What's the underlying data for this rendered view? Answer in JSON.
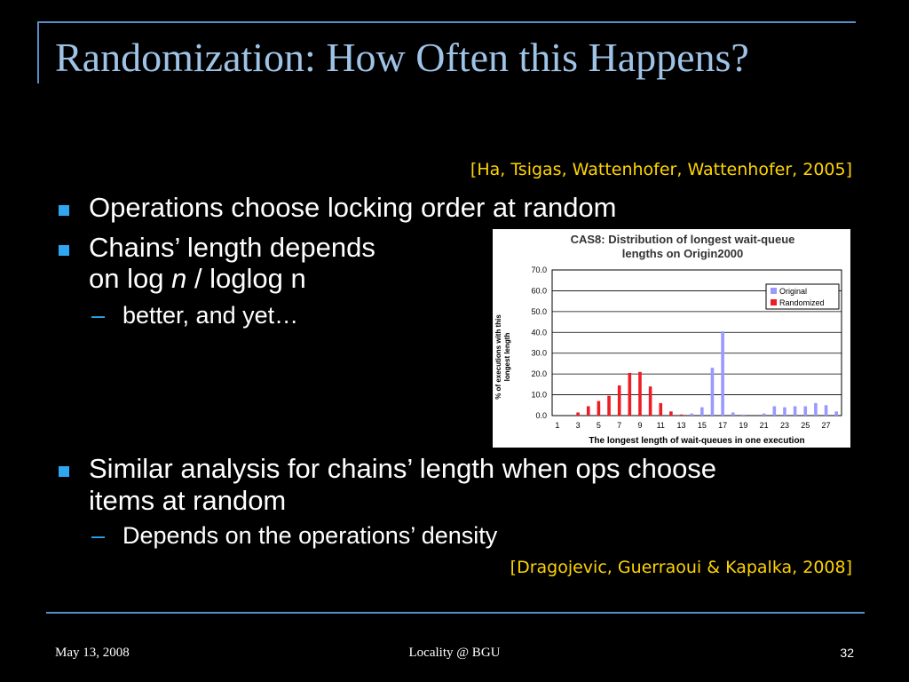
{
  "slide": {
    "title": "Randomization: How Often this Happens?",
    "citation_top": "[Ha, Tsigas, Wattenhofer, Wattenhofer, 2005]",
    "bullets": [
      "Operations choose locking order at random",
      "Chains’ length depends",
      "Similar analysis for chains’ length when ops choose",
      "items at random"
    ],
    "bullet2_line2": {
      "prefix": "on log ",
      "italic": "n",
      "suffix": " / loglog n"
    },
    "subbullets": [
      "better, and yet…",
      "Depends on the operations’ density"
    ],
    "citation_bottom": "[Dragojevic, Guerraoui & Kapalka, 2008]",
    "footer": {
      "date": "May 13, 2008",
      "center": "Locality @ BGU",
      "page": "32"
    },
    "colors": {
      "title": "#9fc3e6",
      "citation": "#ffd400",
      "bullet": "#2ea7f0",
      "rule": "#5a8ec8"
    }
  },
  "chart_data": {
    "type": "bar",
    "title_lines": [
      "CAS8: Distribution of longest wait-queue",
      "lengths on Origin2000"
    ],
    "xlabel": "The longest length of wait-queues in one execution",
    "ylabel_lines": [
      "% of executions with this",
      "longest length"
    ],
    "ylim": [
      0,
      70
    ],
    "yticks": [
      "0.0",
      "10.0",
      "20.0",
      "30.0",
      "40.0",
      "50.0",
      "60.0",
      "70.0"
    ],
    "x_tick_labels": [
      "1",
      "3",
      "5",
      "7",
      "9",
      "11",
      "13",
      "15",
      "17",
      "19",
      "21",
      "23",
      "25",
      "27"
    ],
    "categories": [
      1,
      2,
      3,
      4,
      5,
      6,
      7,
      8,
      9,
      10,
      11,
      12,
      13,
      14,
      15,
      16,
      17,
      18,
      19,
      20,
      21,
      22,
      23,
      24,
      25,
      26,
      27,
      28
    ],
    "legend_position": "top-right",
    "series": [
      {
        "name": "Original",
        "color": "#9999ff",
        "values": [
          0,
          0,
          0,
          0,
          0,
          0,
          0,
          0,
          0,
          0,
          0,
          0,
          0.5,
          1,
          4,
          23,
          40.5,
          1.5,
          0.5,
          0,
          1,
          4.5,
          4,
          4.5,
          4.5,
          6,
          5,
          2
        ]
      },
      {
        "name": "Randomized",
        "color": "#ee1c25",
        "values": [
          0,
          0,
          1.5,
          4.5,
          7,
          9.5,
          14.5,
          20.5,
          21,
          14,
          6,
          2,
          0.5,
          0,
          0,
          0,
          0,
          0,
          0,
          0,
          0,
          0,
          0,
          0,
          0,
          0,
          0,
          0
        ]
      }
    ]
  }
}
